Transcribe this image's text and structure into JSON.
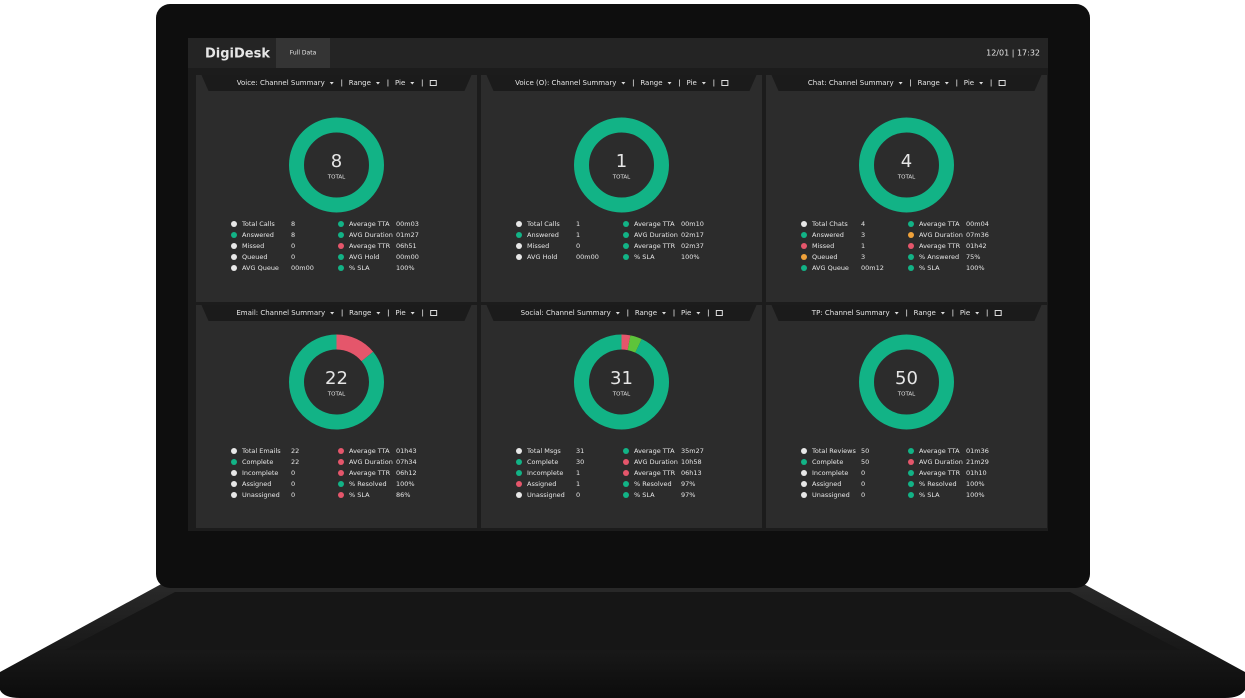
{
  "header": {
    "brand": "DigiDesk",
    "tab": "Full Data",
    "datetime": "12/01 | 17:32"
  },
  "panels": [
    {
      "title": "Voice: Channel Summary",
      "controls": [
        "Range",
        "Pie"
      ],
      "total": "8",
      "total_label": "TOTAL",
      "ring": [
        {
          "color": "#12b386",
          "value": 100
        }
      ],
      "left": [
        {
          "label": "Total Calls",
          "value": "8",
          "color": "#e8e8e8"
        },
        {
          "label": "Answered",
          "value": "8",
          "color": "#12b386"
        },
        {
          "label": "Missed",
          "value": "0",
          "color": "#e8e8e8"
        },
        {
          "label": "Queued",
          "value": "0",
          "color": "#e8e8e8"
        },
        {
          "label": "AVG Queue",
          "value": "00m00",
          "color": "#e8e8e8"
        }
      ],
      "right": [
        {
          "label": "Average TTA",
          "value": "00m03",
          "color": "#12b386"
        },
        {
          "label": "AVG Duration",
          "value": "01m27",
          "color": "#12b386"
        },
        {
          "label": "Average TTR",
          "value": "06h51",
          "color": "#e5566b"
        },
        {
          "label": "AVG Hold",
          "value": "00m00",
          "color": "#12b386"
        },
        {
          "label": "% SLA",
          "value": "100%",
          "color": "#12b386"
        }
      ]
    },
    {
      "title": "Voice (O): Channel Summary",
      "controls": [
        "Range",
        "Pie"
      ],
      "total": "1",
      "total_label": "TOTAL",
      "ring": [
        {
          "color": "#12b386",
          "value": 100
        }
      ],
      "left": [
        {
          "label": "Total Calls",
          "value": "1",
          "color": "#e8e8e8"
        },
        {
          "label": "Answered",
          "value": "1",
          "color": "#12b386"
        },
        {
          "label": "Missed",
          "value": "0",
          "color": "#e8e8e8"
        },
        {
          "label": "AVG Hold",
          "value": "00m00",
          "color": "#e8e8e8"
        }
      ],
      "right": [
        {
          "label": "Average TTA",
          "value": "00m10",
          "color": "#12b386"
        },
        {
          "label": "AVG Duration",
          "value": "02m17",
          "color": "#12b386"
        },
        {
          "label": "Average TTR",
          "value": "02m37",
          "color": "#12b386"
        },
        {
          "label": "% SLA",
          "value": "100%",
          "color": "#12b386"
        }
      ]
    },
    {
      "title": "Chat: Channel Summary",
      "controls": [
        "Range",
        "Pie"
      ],
      "total": "4",
      "total_label": "TOTAL",
      "ring": [
        {
          "color": "#12b386",
          "value": 100
        }
      ],
      "left": [
        {
          "label": "Total Chats",
          "value": "4",
          "color": "#e8e8e8"
        },
        {
          "label": "Answered",
          "value": "3",
          "color": "#12b386"
        },
        {
          "label": "Missed",
          "value": "1",
          "color": "#e5566b"
        },
        {
          "label": "Queued",
          "value": "3",
          "color": "#f0a23a"
        },
        {
          "label": "AVG Queue",
          "value": "00m12",
          "color": "#12b386"
        }
      ],
      "right": [
        {
          "label": "Average TTA",
          "value": "00m04",
          "color": "#12b386"
        },
        {
          "label": "AVG Duration",
          "value": "07m36",
          "color": "#f0a23a"
        },
        {
          "label": "Average TTR",
          "value": "01h42",
          "color": "#e5566b"
        },
        {
          "label": "% Answered",
          "value": "75%",
          "color": "#12b386"
        },
        {
          "label": "% SLA",
          "value": "100%",
          "color": "#12b386"
        }
      ]
    },
    {
      "title": "Email: Channel Summary",
      "controls": [
        "Range",
        "Pie"
      ],
      "total": "22",
      "total_label": "TOTAL",
      "ring": [
        {
          "color": "#e5566b",
          "value": 14
        },
        {
          "color": "#12b386",
          "value": 86
        }
      ],
      "left": [
        {
          "label": "Total Emails",
          "value": "22",
          "color": "#e8e8e8"
        },
        {
          "label": "Complete",
          "value": "22",
          "color": "#12b386"
        },
        {
          "label": "Incomplete",
          "value": "0",
          "color": "#e8e8e8"
        },
        {
          "label": "Assigned",
          "value": "0",
          "color": "#e8e8e8"
        },
        {
          "label": "Unassigned",
          "value": "0",
          "color": "#e8e8e8"
        }
      ],
      "right": [
        {
          "label": "Average TTA",
          "value": "01h43",
          "color": "#e5566b"
        },
        {
          "label": "AVG Duration",
          "value": "07h34",
          "color": "#e5566b"
        },
        {
          "label": "Average TTR",
          "value": "06h12",
          "color": "#e5566b"
        },
        {
          "label": "% Resolved",
          "value": "100%",
          "color": "#12b386"
        },
        {
          "label": "% SLA",
          "value": "86%",
          "color": "#e5566b"
        }
      ]
    },
    {
      "title": "Social: Channel Summary",
      "controls": [
        "Range",
        "Pie"
      ],
      "total": "31",
      "total_label": "TOTAL",
      "ring": [
        {
          "color": "#e5566b",
          "value": 3
        },
        {
          "color": "#5ec43a",
          "value": 4
        },
        {
          "color": "#12b386",
          "value": 93
        }
      ],
      "left": [
        {
          "label": "Total Msgs",
          "value": "31",
          "color": "#e8e8e8"
        },
        {
          "label": "Complete",
          "value": "30",
          "color": "#12b386"
        },
        {
          "label": "Incomplete",
          "value": "1",
          "color": "#12b386"
        },
        {
          "label": "Assigned",
          "value": "1",
          "color": "#e5566b"
        },
        {
          "label": "Unassigned",
          "value": "0",
          "color": "#e8e8e8"
        }
      ],
      "right": [
        {
          "label": "Average TTA",
          "value": "35m27",
          "color": "#12b386"
        },
        {
          "label": "AVG Duration",
          "value": "10h58",
          "color": "#e5566b"
        },
        {
          "label": "Average TTR",
          "value": "06h13",
          "color": "#e5566b"
        },
        {
          "label": "% Resolved",
          "value": "97%",
          "color": "#12b386"
        },
        {
          "label": "% SLA",
          "value": "97%",
          "color": "#12b386"
        }
      ]
    },
    {
      "title": "TP: Channel Summary",
      "controls": [
        "Range",
        "Pie"
      ],
      "total": "50",
      "total_label": "TOTAL",
      "ring": [
        {
          "color": "#12b386",
          "value": 100
        }
      ],
      "left": [
        {
          "label": "Total Reviews",
          "value": "50",
          "color": "#e8e8e8"
        },
        {
          "label": "Complete",
          "value": "50",
          "color": "#12b386"
        },
        {
          "label": "Incomplete",
          "value": "0",
          "color": "#e8e8e8"
        },
        {
          "label": "Assigned",
          "value": "0",
          "color": "#e8e8e8"
        },
        {
          "label": "Unassigned",
          "value": "0",
          "color": "#e8e8e8"
        }
      ],
      "right": [
        {
          "label": "Average TTA",
          "value": "01m36",
          "color": "#12b386"
        },
        {
          "label": "AVG Duration",
          "value": "21m29",
          "color": "#e5566b"
        },
        {
          "label": "Average TTR",
          "value": "01h10",
          "color": "#12b386"
        },
        {
          "label": "% Resolved",
          "value": "100%",
          "color": "#12b386"
        },
        {
          "label": "% SLA",
          "value": "100%",
          "color": "#12b386"
        }
      ]
    }
  ]
}
